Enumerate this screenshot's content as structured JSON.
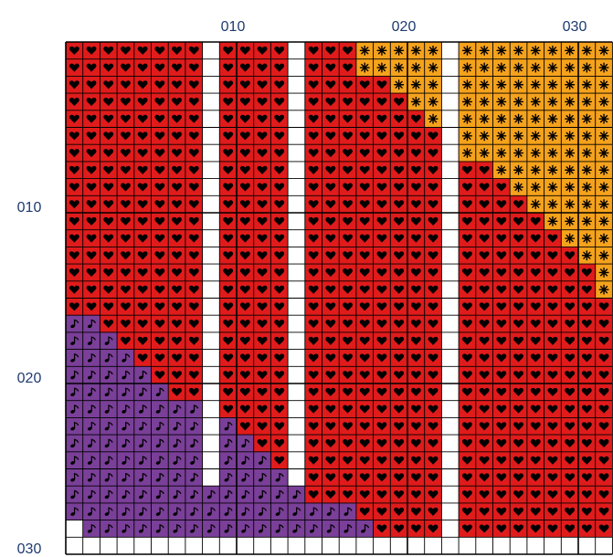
{
  "pattern": {
    "column_labels": [
      "010",
      "020",
      "030"
    ],
    "row_labels": [
      "010",
      "020",
      "030"
    ],
    "colors": {
      "red": "#e01b1b",
      "orange": "#f5a21c",
      "purple": "#7a3f98",
      "white": "#ffffff",
      "grid_line": "#000000",
      "label": "#1e3a70"
    },
    "symbols": {
      "R": "heart-icon",
      "O": "asterisk-icon",
      "P": "musical-note-icon",
      "W": "blank"
    },
    "legend": {
      "R": "red",
      "O": "orange",
      "P": "purple",
      "W": "white"
    },
    "rows": [
      "RRRRRRRRWRRRRWRRRO OOOOWOOOOOOOOO",
      "RRRRRRRRWRRRRWRRROOOOOWOOOOOOOOO",
      "RRRRRRRRWRRRRWRRRRROOOWOOOOOOOOO",
      "RRRRRRRRWRRRRWRRRRRROOWOOOOOOOOO",
      "RRRRRRRRWRRRRWRRRRRRROWOOOOOOOOO",
      "RRRRRRRRWRRRRWRRRRRRRRWOOOOOOOOO",
      "RRRRRRRRWRRRRWRRRRRRRRWOOOOOOOOO",
      "RRRRRRRRWRRRRWRRRRRRRRWRROOOOOOO",
      "RRRRRRRRWRRRRWRRRRRRRRWRRROOOOOO",
      "RRRRRRRRWRRRRWRRRRRRRRWRRRROOOOO",
      "RRRRRRRRWRRRRWRRRRRRRRWRRRRROOOO",
      "RRRRRRRRWRRRRWRRRRRRRRWRRRRRROOO",
      "RRRRRRRRWRRRRWRRRRRRRRWRRRRRRROO",
      "RRRRRRRRWRRRRWRRRRRRRRWRRRRRRRRO",
      "RRRRRRRRWRRRRWRRRRRRRRWRRRRRRRRO",
      "RRRRRRRRWRRRRWRRRRRRRRWRRRRRRRRR",
      "PPRRRRRRWRRRRWRRRRRRRRWRRRRRRRRR",
      "PPPRRRRRWRRRRWRRRRRRRRWRRRRRRRRR",
      "PPPPRRRRWRRRRWRRRRRRRRWRRRRRRRRR",
      "PPPPPRRRWRRRRWRRRRRRRRWRRRRRRRRR",
      "PPPPPPRRWRRRRWRRRRRRRRWRRRRRRRRR",
      "PPPPPPPPWRRRRWRRRRRRRRWRRRRRRRRR",
      "PPPPPPPPWPRRRWRRRRRRRRWRRRRRRRRR",
      "PPPPPPPPWPPRRWRRRRRRRRWRRRRRRRRR",
      "PPPPPPPPWPPPRWRRRRRRRRWRRRRRRRRR",
      "PPPPPPPPWPPPPWRRRRRRRRWRRRRRRRRR",
      "PPPPPPPPPPPPPPRRRRRRRRWRRRRRRRRR",
      "PPPPPPPPPPPPPPPPPRRRRRWRRRRRRRRR",
      "WPPPPPPPPPPPPPPPPPRRRRWRRRRRRRRR",
      "WWWWWWWWWWWWWWWWWWWWWWWWWWWWWWWW"
    ]
  }
}
